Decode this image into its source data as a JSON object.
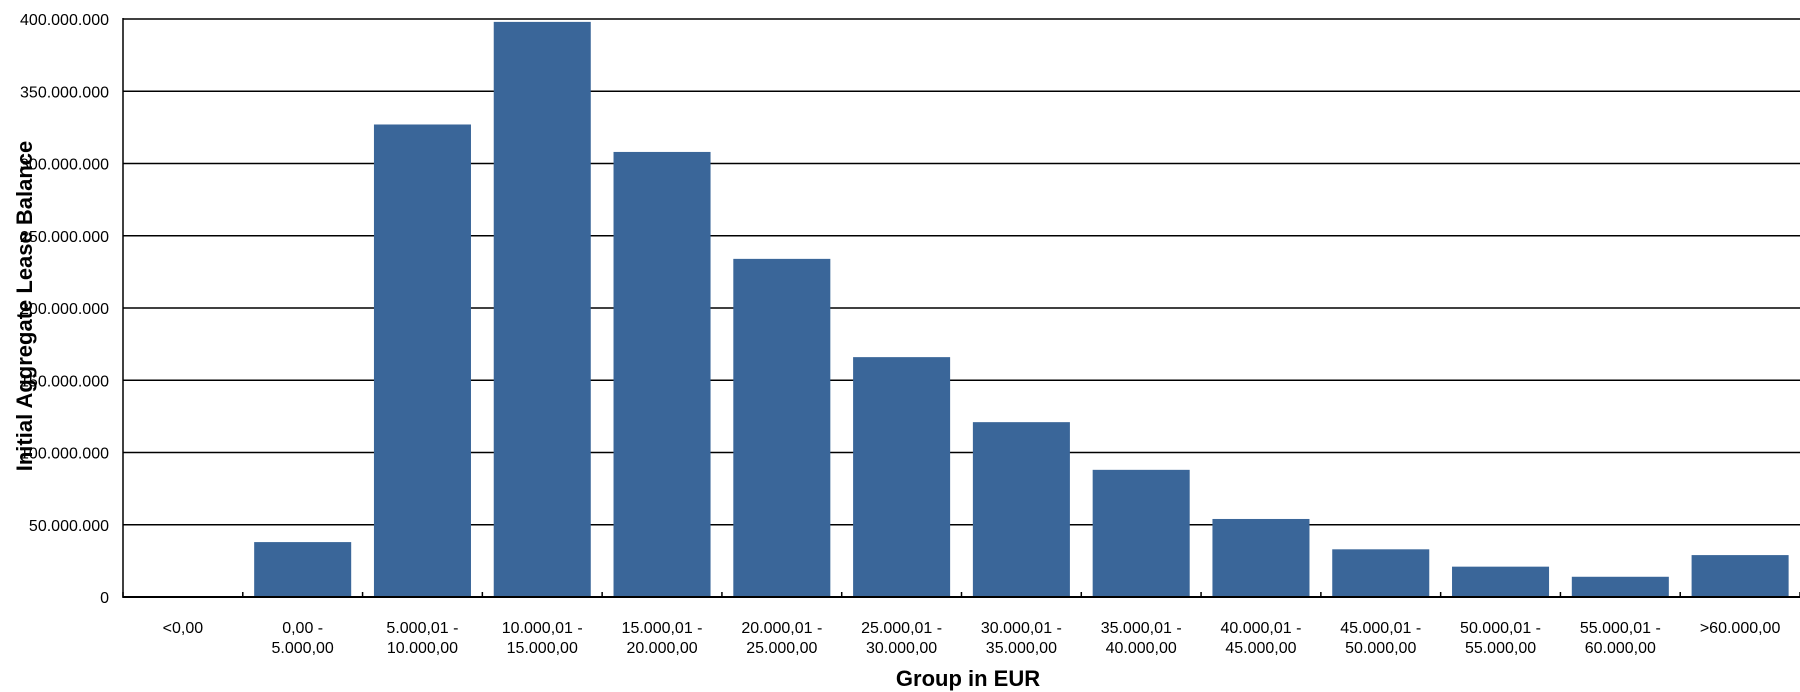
{
  "chart_data": {
    "type": "bar",
    "title": "",
    "xlabel": "Group in EUR",
    "ylabel": "Initial Aggregate Lease Balance",
    "categories": [
      [
        "<0,00"
      ],
      [
        "0,00 -",
        "5.000,00"
      ],
      [
        "5.000,01 -",
        "10.000,00"
      ],
      [
        "10.000,01 -",
        "15.000,00"
      ],
      [
        "15.000,01 -",
        "20.000,00"
      ],
      [
        "20.000,01 -",
        "25.000,00"
      ],
      [
        "25.000,01 -",
        "30.000,00"
      ],
      [
        "30.000,01 -",
        "35.000,00"
      ],
      [
        "35.000,01 -",
        "40.000,00"
      ],
      [
        "40.000,01 -",
        "45.000,00"
      ],
      [
        "45.000,01 -",
        "50.000,00"
      ],
      [
        "50.000,01 -",
        "55.000,00"
      ],
      [
        "55.000,01 -",
        "60.000,00"
      ],
      [
        ">60.000,00"
      ]
    ],
    "values": [
      0,
      38000000,
      327000000,
      398000000,
      308000000,
      234000000,
      166000000,
      121000000,
      88000000,
      54000000,
      33000000,
      21000000,
      14000000,
      29000000
    ],
    "yticks": [
      "0",
      "50.000.000",
      "100.000.000",
      "150.000.000",
      "200.000.000",
      "250.000.000",
      "300.000.000",
      "350.000.000",
      "400.000.000"
    ],
    "ylim": [
      0,
      400000000
    ],
    "grid": true,
    "legend": "none",
    "bar_color": "#3a6699"
  }
}
